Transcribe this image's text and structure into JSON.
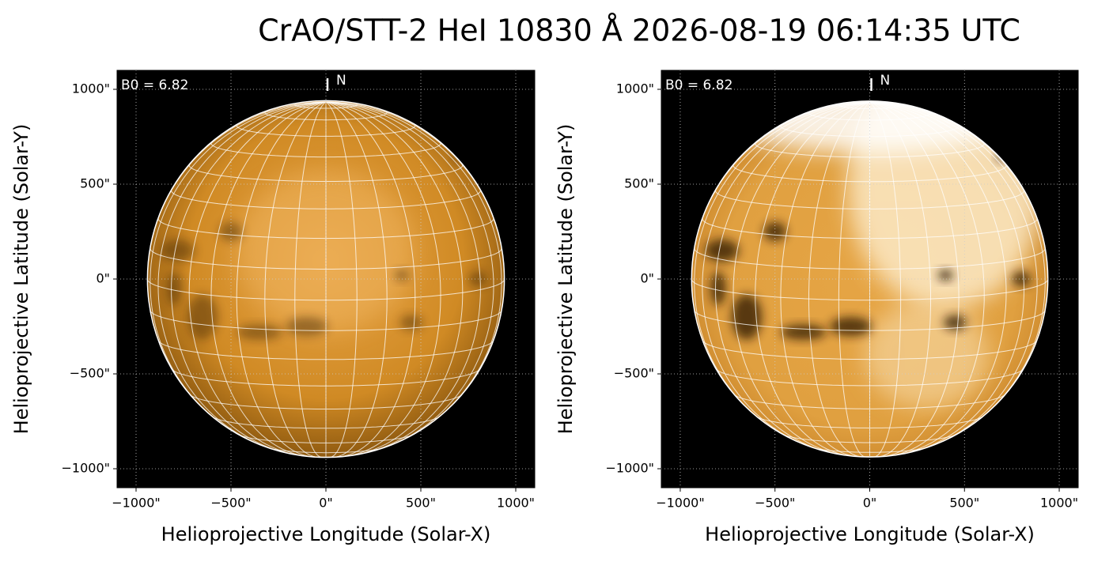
{
  "title": "CrAO/STT-2 HeI 10830 Å 2026-08-19 06:14:35 UTC",
  "chart_data": [
    {
      "type": "image",
      "xlabel": "Helioprojective Longitude (Solar-X)",
      "ylabel": "Helioprojective Latitude (Solar-Y)",
      "xlim": [
        -1100,
        1100
      ],
      "ylim": [
        -1100,
        1100
      ],
      "xticks": [
        {
          "value": -1000,
          "label": "−1000\""
        },
        {
          "value": -500,
          "label": "−500\""
        },
        {
          "value": 0,
          "label": "0\""
        },
        {
          "value": 500,
          "label": "500\""
        },
        {
          "value": 1000,
          "label": "1000\""
        }
      ],
      "yticks": [
        {
          "value": -1000,
          "label": "−1000\""
        },
        {
          "value": -500,
          "label": "−500\""
        },
        {
          "value": 0,
          "label": "0\""
        },
        {
          "value": 500,
          "label": "500\""
        },
        {
          "value": 1000,
          "label": "1000\""
        }
      ],
      "b0": {
        "value": 6.82,
        "label": "B0 = 6.82"
      },
      "north_label": "N",
      "disk_radius": 940,
      "grid_spacing": 10,
      "style": "normal"
    },
    {
      "type": "image",
      "xlabel": "Helioprojective Longitude (Solar-X)",
      "ylabel": "Helioprojective Latitude (Solar-Y)",
      "xlim": [
        -1100,
        1100
      ],
      "ylim": [
        -1100,
        1100
      ],
      "xticks": [
        {
          "value": -1000,
          "label": "−1000\""
        },
        {
          "value": -500,
          "label": "−500\""
        },
        {
          "value": 0,
          "label": "0\""
        },
        {
          "value": 500,
          "label": "500\""
        },
        {
          "value": 1000,
          "label": "1000\""
        }
      ],
      "yticks": [
        {
          "value": -1000,
          "label": "−1000\""
        },
        {
          "value": -500,
          "label": "−500\""
        },
        {
          "value": 0,
          "label": "0\""
        },
        {
          "value": 500,
          "label": "500\""
        },
        {
          "value": 1000,
          "label": "1000\""
        }
      ],
      "b0": {
        "value": 6.82,
        "label": "B0 = 6.82"
      },
      "north_label": "N",
      "disk_radius": 940,
      "grid_spacing": 10,
      "style": "enhanced"
    }
  ]
}
